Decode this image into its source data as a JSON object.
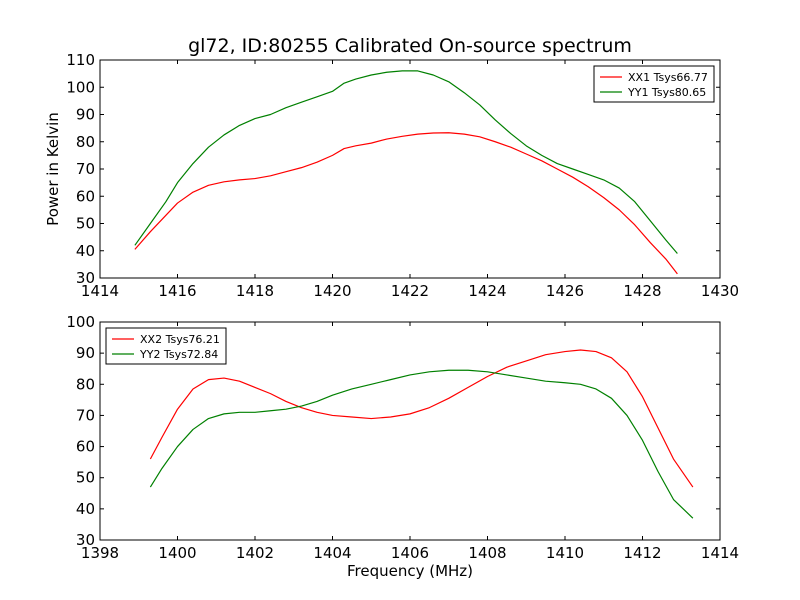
{
  "chart_data": [
    {
      "type": "line",
      "title": "gl72, ID:80255 Calibrated On-source spectrum",
      "xlabel": "",
      "ylabel": "Power in Kelvin",
      "xlim": [
        1414,
        1430
      ],
      "ylim": [
        30,
        110
      ],
      "xticks": [
        1414,
        1416,
        1418,
        1420,
        1422,
        1424,
        1426,
        1428,
        1430
      ],
      "yticks": [
        30,
        40,
        50,
        60,
        70,
        80,
        90,
        100,
        110
      ],
      "legend_position": "top-right",
      "series": [
        {
          "name": "XX1 Tsys66.77",
          "color": "#ff0000",
          "x": [
            1414.9,
            1415.3,
            1415.7,
            1416.0,
            1416.4,
            1416.8,
            1417.2,
            1417.6,
            1418.0,
            1418.4,
            1418.8,
            1419.2,
            1419.6,
            1420.0,
            1420.3,
            1420.6,
            1421.0,
            1421.4,
            1421.8,
            1422.2,
            1422.6,
            1423.0,
            1423.4,
            1423.8,
            1424.2,
            1424.6,
            1425.0,
            1425.4,
            1425.8,
            1426.2,
            1426.6,
            1427.0,
            1427.4,
            1427.8,
            1428.2,
            1428.6,
            1428.9
          ],
          "y": [
            40.5,
            47,
            53,
            57.5,
            61.5,
            64,
            65.3,
            66,
            66.5,
            67.5,
            69,
            70.5,
            72.5,
            75,
            77.5,
            78.5,
            79.5,
            81,
            82,
            82.8,
            83.2,
            83.3,
            82.8,
            81.8,
            80,
            78,
            75.5,
            73,
            70,
            67,
            63.5,
            59.5,
            55,
            49.5,
            43,
            37,
            31.5
          ]
        },
        {
          "name": "YY1 Tsys80.65",
          "color": "#008000",
          "x": [
            1414.9,
            1415.3,
            1415.7,
            1416.0,
            1416.4,
            1416.8,
            1417.2,
            1417.6,
            1418.0,
            1418.4,
            1418.8,
            1419.2,
            1419.6,
            1420.0,
            1420.3,
            1420.6,
            1421.0,
            1421.4,
            1421.8,
            1422.2,
            1422.6,
            1423.0,
            1423.4,
            1423.8,
            1424.2,
            1424.6,
            1425.0,
            1425.4,
            1425.8,
            1426.2,
            1426.6,
            1427.0,
            1427.4,
            1427.8,
            1428.2,
            1428.6,
            1428.9
          ],
          "y": [
            42,
            50,
            58,
            65,
            72,
            78,
            82.5,
            86,
            88.5,
            90,
            92.5,
            94.5,
            96.5,
            98.5,
            101.5,
            103,
            104.5,
            105.5,
            106,
            106,
            104.5,
            102,
            98,
            93.5,
            88,
            83,
            78.5,
            75,
            72,
            70,
            68,
            66,
            63,
            58,
            51,
            44,
            39
          ]
        }
      ]
    },
    {
      "type": "line",
      "title": "",
      "xlabel": "Frequency (MHz)",
      "ylabel": "",
      "xlim": [
        1398,
        1414
      ],
      "ylim": [
        30,
        100
      ],
      "xticks": [
        1398,
        1400,
        1402,
        1404,
        1406,
        1408,
        1410,
        1412,
        1414
      ],
      "yticks": [
        30,
        40,
        50,
        60,
        70,
        80,
        90,
        100
      ],
      "legend_position": "top-left",
      "series": [
        {
          "name": "XX2 Tsys76.21",
          "color": "#ff0000",
          "x": [
            1399.3,
            1399.6,
            1400.0,
            1400.4,
            1400.8,
            1401.2,
            1401.6,
            1402.0,
            1402.4,
            1402.8,
            1403.2,
            1403.6,
            1404.0,
            1404.5,
            1405.0,
            1405.5,
            1406.0,
            1406.5,
            1407.0,
            1407.5,
            1408.0,
            1408.5,
            1409.0,
            1409.5,
            1410.0,
            1410.4,
            1410.8,
            1411.2,
            1411.6,
            1412.0,
            1412.4,
            1412.8,
            1413.3
          ],
          "y": [
            56,
            63,
            72,
            78.5,
            81.5,
            82,
            81,
            79,
            77,
            74.5,
            72.5,
            71,
            70,
            69.5,
            69,
            69.5,
            70.5,
            72.5,
            75.5,
            79,
            82.5,
            85.5,
            87.5,
            89.5,
            90.5,
            91,
            90.5,
            88.5,
            84,
            76,
            66,
            56,
            47
          ]
        },
        {
          "name": "YY2 Tsys72.84",
          "color": "#008000",
          "x": [
            1399.3,
            1399.6,
            1400.0,
            1400.4,
            1400.8,
            1401.2,
            1401.6,
            1402.0,
            1402.4,
            1402.8,
            1403.2,
            1403.6,
            1404.0,
            1404.5,
            1405.0,
            1405.5,
            1406.0,
            1406.5,
            1407.0,
            1407.5,
            1408.0,
            1408.5,
            1409.0,
            1409.5,
            1410.0,
            1410.4,
            1410.8,
            1411.2,
            1411.6,
            1412.0,
            1412.4,
            1412.8,
            1413.3
          ],
          "y": [
            47,
            53,
            60,
            65.5,
            69,
            70.5,
            71,
            71,
            71.5,
            72,
            73,
            74.5,
            76.5,
            78.5,
            80,
            81.5,
            83,
            84,
            84.5,
            84.5,
            84,
            83,
            82,
            81,
            80.5,
            80,
            78.5,
            75.5,
            70,
            62,
            52,
            43,
            37
          ]
        }
      ]
    }
  ]
}
